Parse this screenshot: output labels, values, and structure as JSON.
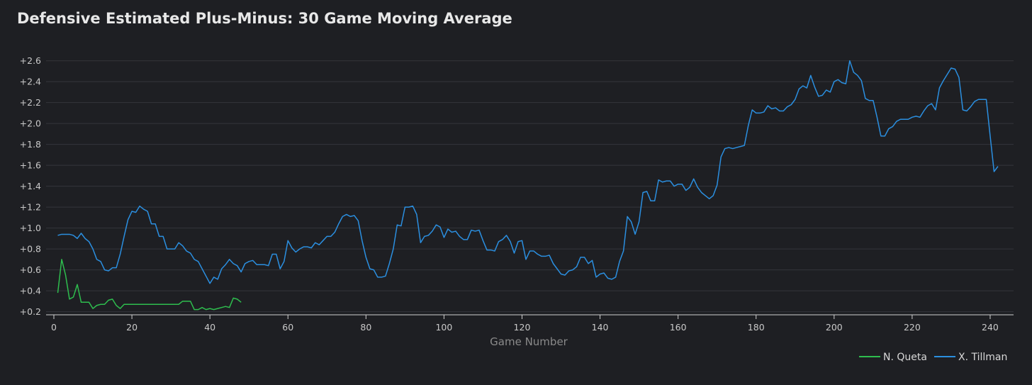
{
  "chart_data": {
    "type": "line",
    "title": "Defensive Estimated Plus-Minus: 30 Game Moving Average",
    "xlabel": "Game Number",
    "ylabel": "",
    "xlim": [
      -2,
      246
    ],
    "ylim": [
      0.17,
      2.72
    ],
    "x_ticks": [
      0,
      20,
      40,
      60,
      80,
      100,
      120,
      140,
      160,
      180,
      200,
      220,
      240
    ],
    "y_ticks": [
      0.2,
      0.4,
      0.6,
      0.8,
      1.0,
      1.2,
      1.4,
      1.6,
      1.8,
      2.0,
      2.2,
      2.4,
      2.6
    ],
    "y_tick_labels": [
      "+0.2",
      "+0.4",
      "+0.6",
      "+0.8",
      "+1.0",
      "+1.2",
      "+1.4",
      "+1.6",
      "+1.8",
      "+2.0",
      "+2.2",
      "+2.4",
      "+2.6"
    ],
    "grid": true,
    "legend_position": "bottom-right",
    "series": [
      {
        "name": "N. Queta",
        "color": "#2ebd4e",
        "points": [
          [
            1,
            0.38
          ],
          [
            2,
            0.7
          ],
          [
            3,
            0.55
          ],
          [
            4,
            0.32
          ],
          [
            5,
            0.34
          ],
          [
            6,
            0.46
          ],
          [
            7,
            0.29
          ],
          [
            8,
            0.29
          ],
          [
            9,
            0.29
          ],
          [
            10,
            0.23
          ],
          [
            11,
            0.26
          ],
          [
            12,
            0.27
          ],
          [
            13,
            0.27
          ],
          [
            14,
            0.31
          ],
          [
            15,
            0.32
          ],
          [
            16,
            0.26
          ],
          [
            17,
            0.23
          ],
          [
            18,
            0.27
          ],
          [
            20,
            0.27
          ],
          [
            25,
            0.27
          ],
          [
            30,
            0.27
          ],
          [
            32,
            0.27
          ],
          [
            33,
            0.3
          ],
          [
            34,
            0.3
          ],
          [
            35,
            0.3
          ],
          [
            36,
            0.22
          ],
          [
            37,
            0.22
          ],
          [
            38,
            0.24
          ],
          [
            39,
            0.22
          ],
          [
            40,
            0.23
          ],
          [
            41,
            0.22
          ],
          [
            42,
            0.23
          ],
          [
            43,
            0.24
          ],
          [
            44,
            0.25
          ],
          [
            45,
            0.24
          ],
          [
            46,
            0.33
          ],
          [
            47,
            0.32
          ],
          [
            48,
            0.29
          ]
        ]
      },
      {
        "name": "X. Tillman",
        "color": "#2b8fe0",
        "points": [
          [
            1,
            0.93
          ],
          [
            2,
            0.94
          ],
          [
            3,
            0.94
          ],
          [
            4,
            0.94
          ],
          [
            5,
            0.93
          ],
          [
            6,
            0.9
          ],
          [
            7,
            0.95
          ],
          [
            8,
            0.9
          ],
          [
            9,
            0.87
          ],
          [
            10,
            0.8
          ],
          [
            11,
            0.7
          ],
          [
            12,
            0.68
          ],
          [
            13,
            0.6
          ],
          [
            14,
            0.59
          ],
          [
            15,
            0.62
          ],
          [
            16,
            0.62
          ],
          [
            17,
            0.75
          ],
          [
            18,
            0.92
          ],
          [
            19,
            1.08
          ],
          [
            20,
            1.16
          ],
          [
            21,
            1.15
          ],
          [
            22,
            1.21
          ],
          [
            23,
            1.18
          ],
          [
            24,
            1.16
          ],
          [
            25,
            1.04
          ],
          [
            26,
            1.04
          ],
          [
            27,
            0.92
          ],
          [
            28,
            0.92
          ],
          [
            29,
            0.8
          ],
          [
            30,
            0.8
          ],
          [
            31,
            0.8
          ],
          [
            32,
            0.86
          ],
          [
            33,
            0.83
          ],
          [
            34,
            0.78
          ],
          [
            35,
            0.76
          ],
          [
            36,
            0.7
          ],
          [
            37,
            0.68
          ],
          [
            38,
            0.61
          ],
          [
            39,
            0.54
          ],
          [
            40,
            0.47
          ],
          [
            41,
            0.53
          ],
          [
            42,
            0.51
          ],
          [
            43,
            0.61
          ],
          [
            44,
            0.65
          ],
          [
            45,
            0.7
          ],
          [
            46,
            0.66
          ],
          [
            47,
            0.64
          ],
          [
            48,
            0.58
          ],
          [
            49,
            0.66
          ],
          [
            50,
            0.68
          ],
          [
            51,
            0.69
          ],
          [
            52,
            0.65
          ],
          [
            53,
            0.65
          ],
          [
            54,
            0.65
          ],
          [
            55,
            0.64
          ],
          [
            56,
            0.75
          ],
          [
            57,
            0.75
          ],
          [
            58,
            0.61
          ],
          [
            59,
            0.68
          ],
          [
            60,
            0.88
          ],
          [
            61,
            0.81
          ],
          [
            62,
            0.77
          ],
          [
            63,
            0.8
          ],
          [
            64,
            0.82
          ],
          [
            65,
            0.82
          ],
          [
            66,
            0.81
          ],
          [
            67,
            0.86
          ],
          [
            68,
            0.84
          ],
          [
            69,
            0.88
          ],
          [
            70,
            0.92
          ],
          [
            71,
            0.92
          ],
          [
            72,
            0.96
          ],
          [
            73,
            1.04
          ],
          [
            74,
            1.11
          ],
          [
            75,
            1.13
          ],
          [
            76,
            1.11
          ],
          [
            77,
            1.12
          ],
          [
            78,
            1.07
          ],
          [
            79,
            0.88
          ],
          [
            80,
            0.72
          ],
          [
            81,
            0.61
          ],
          [
            82,
            0.6
          ],
          [
            83,
            0.53
          ],
          [
            84,
            0.53
          ],
          [
            85,
            0.54
          ],
          [
            86,
            0.66
          ],
          [
            87,
            0.8
          ],
          [
            88,
            1.03
          ],
          [
            89,
            1.02
          ],
          [
            90,
            1.2
          ],
          [
            91,
            1.2
          ],
          [
            92,
            1.21
          ],
          [
            93,
            1.13
          ],
          [
            94,
            0.86
          ],
          [
            95,
            0.92
          ],
          [
            96,
            0.93
          ],
          [
            97,
            0.97
          ],
          [
            98,
            1.03
          ],
          [
            99,
            1.01
          ],
          [
            100,
            0.91
          ],
          [
            101,
            0.99
          ],
          [
            102,
            0.96
          ],
          [
            103,
            0.97
          ],
          [
            104,
            0.92
          ],
          [
            105,
            0.89
          ],
          [
            106,
            0.89
          ],
          [
            107,
            0.98
          ],
          [
            108,
            0.97
          ],
          [
            109,
            0.98
          ],
          [
            110,
            0.88
          ],
          [
            111,
            0.79
          ],
          [
            112,
            0.79
          ],
          [
            113,
            0.78
          ],
          [
            114,
            0.87
          ],
          [
            115,
            0.89
          ],
          [
            116,
            0.93
          ],
          [
            117,
            0.87
          ],
          [
            118,
            0.76
          ],
          [
            119,
            0.87
          ],
          [
            120,
            0.88
          ],
          [
            121,
            0.7
          ],
          [
            122,
            0.78
          ],
          [
            123,
            0.78
          ],
          [
            124,
            0.75
          ],
          [
            125,
            0.73
          ],
          [
            126,
            0.73
          ],
          [
            127,
            0.74
          ],
          [
            128,
            0.66
          ],
          [
            129,
            0.61
          ],
          [
            130,
            0.56
          ],
          [
            131,
            0.55
          ],
          [
            132,
            0.59
          ],
          [
            133,
            0.6
          ],
          [
            134,
            0.63
          ],
          [
            135,
            0.72
          ],
          [
            136,
            0.72
          ],
          [
            137,
            0.66
          ],
          [
            138,
            0.69
          ],
          [
            139,
            0.53
          ],
          [
            140,
            0.56
          ],
          [
            141,
            0.57
          ],
          [
            142,
            0.52
          ],
          [
            143,
            0.51
          ],
          [
            144,
            0.53
          ],
          [
            145,
            0.68
          ],
          [
            146,
            0.78
          ],
          [
            147,
            1.11
          ],
          [
            148,
            1.06
          ],
          [
            149,
            0.94
          ],
          [
            150,
            1.06
          ],
          [
            151,
            1.34
          ],
          [
            152,
            1.35
          ],
          [
            153,
            1.26
          ],
          [
            154,
            1.26
          ],
          [
            155,
            1.46
          ],
          [
            156,
            1.44
          ],
          [
            157,
            1.45
          ],
          [
            158,
            1.45
          ],
          [
            159,
            1.4
          ],
          [
            160,
            1.42
          ],
          [
            161,
            1.42
          ],
          [
            162,
            1.36
          ],
          [
            163,
            1.39
          ],
          [
            164,
            1.47
          ],
          [
            165,
            1.39
          ],
          [
            166,
            1.34
          ],
          [
            167,
            1.31
          ],
          [
            168,
            1.28
          ],
          [
            169,
            1.31
          ],
          [
            170,
            1.41
          ],
          [
            171,
            1.68
          ],
          [
            172,
            1.76
          ],
          [
            173,
            1.77
          ],
          [
            174,
            1.76
          ],
          [
            175,
            1.77
          ],
          [
            176,
            1.78
          ],
          [
            177,
            1.79
          ],
          [
            178,
            1.98
          ],
          [
            179,
            2.13
          ],
          [
            180,
            2.1
          ],
          [
            181,
            2.1
          ],
          [
            182,
            2.11
          ],
          [
            183,
            2.17
          ],
          [
            184,
            2.14
          ],
          [
            185,
            2.15
          ],
          [
            186,
            2.12
          ],
          [
            187,
            2.12
          ],
          [
            188,
            2.16
          ],
          [
            189,
            2.18
          ],
          [
            190,
            2.23
          ],
          [
            191,
            2.33
          ],
          [
            192,
            2.36
          ],
          [
            193,
            2.34
          ],
          [
            194,
            2.46
          ],
          [
            195,
            2.35
          ],
          [
            196,
            2.26
          ],
          [
            197,
            2.27
          ],
          [
            198,
            2.32
          ],
          [
            199,
            2.3
          ],
          [
            200,
            2.4
          ],
          [
            201,
            2.42
          ],
          [
            202,
            2.39
          ],
          [
            203,
            2.38
          ],
          [
            204,
            2.6
          ],
          [
            205,
            2.49
          ],
          [
            206,
            2.46
          ],
          [
            207,
            2.41
          ],
          [
            208,
            2.24
          ],
          [
            209,
            2.22
          ],
          [
            210,
            2.22
          ],
          [
            211,
            2.06
          ],
          [
            212,
            1.88
          ],
          [
            213,
            1.88
          ],
          [
            214,
            1.95
          ],
          [
            215,
            1.97
          ],
          [
            216,
            2.02
          ],
          [
            217,
            2.04
          ],
          [
            218,
            2.04
          ],
          [
            219,
            2.04
          ],
          [
            220,
            2.06
          ],
          [
            221,
            2.07
          ],
          [
            222,
            2.06
          ],
          [
            223,
            2.12
          ],
          [
            224,
            2.17
          ],
          [
            225,
            2.19
          ],
          [
            226,
            2.13
          ],
          [
            227,
            2.34
          ],
          [
            228,
            2.41
          ],
          [
            229,
            2.47
          ],
          [
            230,
            2.53
          ],
          [
            231,
            2.52
          ],
          [
            232,
            2.44
          ],
          [
            233,
            2.13
          ],
          [
            234,
            2.12
          ],
          [
            235,
            2.16
          ],
          [
            236,
            2.21
          ],
          [
            237,
            2.23
          ],
          [
            238,
            2.23
          ],
          [
            239,
            2.23
          ],
          [
            240,
            1.88
          ],
          [
            241,
            1.54
          ],
          [
            242,
            1.59
          ]
        ]
      }
    ]
  }
}
